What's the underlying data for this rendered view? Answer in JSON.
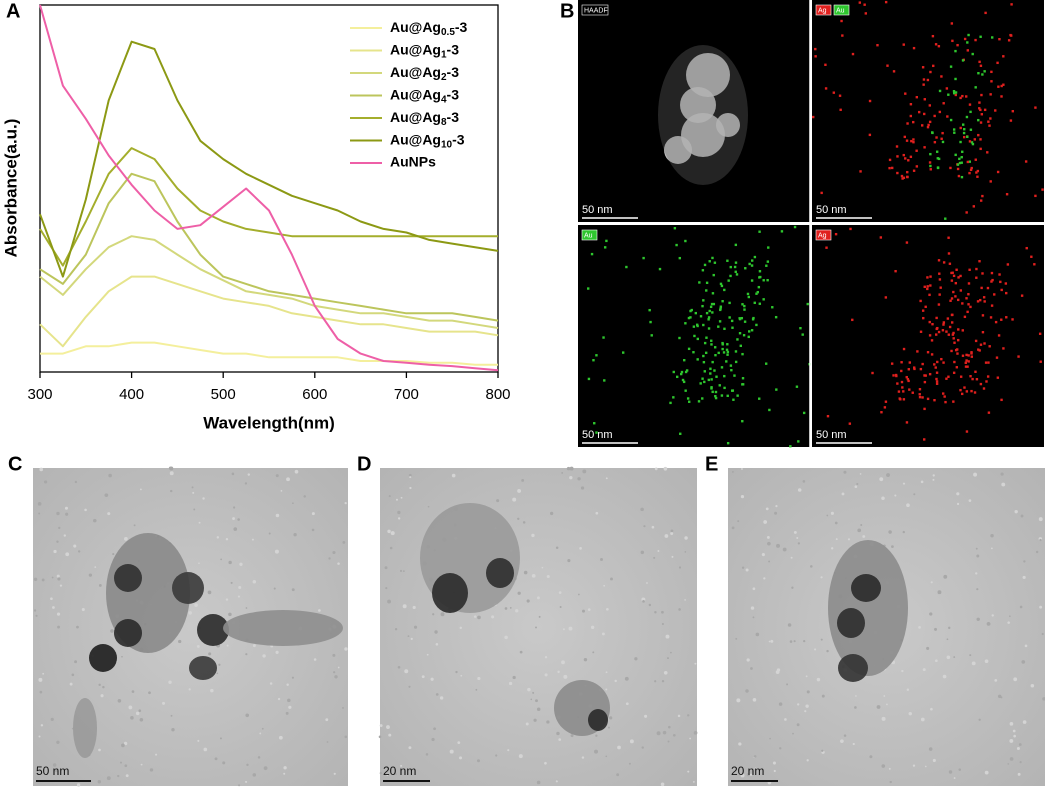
{
  "panel_labels": [
    "A",
    "B",
    "C",
    "D",
    "E"
  ],
  "chart_data": {
    "type": "line",
    "xlabel": "Wavelength(nm)",
    "ylabel": "Absorbance(a.u.)",
    "x": [
      300,
      325,
      350,
      375,
      400,
      425,
      450,
      475,
      500,
      525,
      550,
      575,
      600,
      625,
      650,
      675,
      700,
      725,
      750,
      775,
      800
    ],
    "xlim": [
      300,
      800
    ],
    "xticks": [
      300,
      400,
      500,
      600,
      700,
      800
    ],
    "ylim": [
      0,
      100
    ],
    "legend": "upper right",
    "series": [
      {
        "name": "Au@Ag0.5-3",
        "color": "#f4ef9c",
        "values": [
          5,
          5,
          7,
          7,
          8,
          8,
          7,
          6,
          5,
          5,
          4,
          4,
          4,
          4,
          3,
          3,
          3,
          2.5,
          2.5,
          2,
          2
        ]
      },
      {
        "name": "Au@Ag1-3",
        "color": "#e6e48c",
        "values": [
          13,
          7,
          15,
          22,
          26,
          26,
          24,
          22,
          20,
          19,
          18,
          16,
          15,
          14,
          13,
          13,
          12,
          11,
          11,
          11,
          10
        ]
      },
      {
        "name": "Au@Ag2-3",
        "color": "#d3d87c",
        "values": [
          26,
          21,
          28,
          34,
          37,
          36,
          32,
          28,
          25,
          22,
          21,
          20,
          18,
          17,
          16,
          16,
          15,
          14,
          14,
          13,
          12
        ]
      },
      {
        "name": "Au@Ag4-3",
        "color": "#bcc55c",
        "values": [
          28,
          24,
          32,
          46,
          54,
          52,
          41,
          32,
          26,
          24,
          22,
          21,
          20,
          19,
          18,
          17,
          16,
          16,
          16,
          15,
          14
        ]
      },
      {
        "name": "Au@Ag8-3",
        "color": "#a4ae2c",
        "values": [
          39,
          29,
          41,
          54,
          61,
          58,
          50,
          44,
          41,
          39,
          38,
          37,
          37,
          37,
          37,
          37,
          37,
          37,
          37,
          37,
          37
        ]
      },
      {
        "name": "Au@Ag10-3",
        "color": "#8c9914",
        "values": [
          43,
          26,
          47,
          74,
          90,
          88,
          74,
          63,
          58,
          54,
          51,
          48,
          46,
          44,
          41,
          39,
          38,
          36,
          35,
          34,
          33
        ]
      },
      {
        "name": "AuNPs",
        "color": "#ee5fa7",
        "values": [
          100,
          78,
          69,
          59,
          51,
          44,
          39,
          40,
          45,
          50,
          44,
          32,
          18,
          9,
          5,
          3,
          2.5,
          2,
          1.6,
          1,
          0.5
        ]
      }
    ]
  },
  "eds_maps": [
    {
      "tags": [
        "HAADF"
      ],
      "scale": "50 nm"
    },
    {
      "tags": [
        "Ag",
        "Au"
      ],
      "scale": "50 nm"
    },
    {
      "tags": [
        "Au"
      ],
      "scale": "50 nm"
    },
    {
      "tags": [
        "Ag"
      ],
      "scale": "50 nm"
    }
  ],
  "tem_images": [
    {
      "scale": "50 nm"
    },
    {
      "scale": "20 nm"
    },
    {
      "scale": "20 nm"
    }
  ]
}
